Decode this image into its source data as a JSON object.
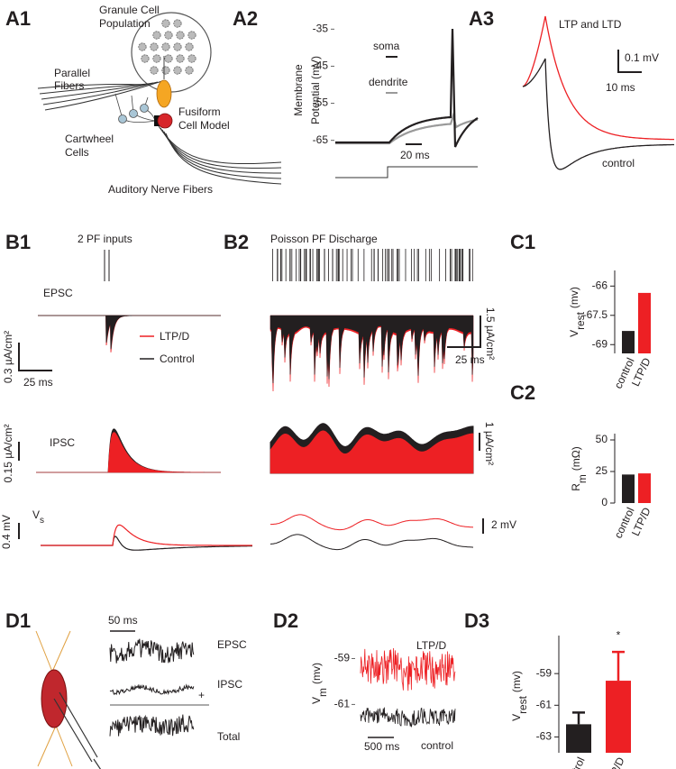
{
  "panel_labels": [
    "A1",
    "A2",
    "A3",
    "B1",
    "B2",
    "C1",
    "C2",
    "D1",
    "D2",
    "D3"
  ],
  "a1": {
    "granule": [
      "Granule Cell",
      "Population"
    ],
    "parallel": [
      "Parallel",
      "Fibers"
    ],
    "cartwheel": [
      "Cartwheel",
      "Cells"
    ],
    "fusiform": [
      "Fusiform",
      "Cell Model"
    ],
    "auditory": "Auditory Nerve Fibers"
  },
  "a2": {
    "ylabel": [
      "Membrane",
      "Potential  (mV)"
    ],
    "yticks": [
      -35,
      -45,
      -55,
      -65
    ],
    "ylim": [
      -68,
      -32
    ],
    "legend": [
      "soma",
      "dendrite"
    ],
    "scale": "20 ms"
  },
  "a3": {
    "title": "LTP and LTD",
    "scale_y": "0.1 mV",
    "scale_x": "10 ms",
    "trace": "control"
  },
  "b1": {
    "title": "2 PF inputs",
    "epsc": "EPSC",
    "ipsc": "IPSC",
    "vs": {
      "symbol": "V",
      "subscript": "s"
    },
    "legend": [
      "LTP/D",
      "Control"
    ],
    "scale_epsc": "0.3 µA/cm²",
    "scale_time": "25 ms",
    "scale_ipsc": "0.15 µA/cm²",
    "scale_vs": "0.4 mV"
  },
  "b2": {
    "title": "Poisson PF Discharge",
    "scale_epsc": "1.5 µA/cm²",
    "scale_time": "25 ms",
    "scale_ipsc": "1 µA/cm²",
    "scale_vs": "2 mV"
  },
  "d1": {
    "scale": "50 ms",
    "traces": [
      "EPSC",
      "IPSC",
      "Total"
    ],
    "operator": "+"
  },
  "d2": {
    "ylabel": {
      "symbol": "V",
      "subscript": "m",
      "unit": "(mv)"
    },
    "yticks": [
      -59,
      -61
    ],
    "ylim": [
      -63.3,
      -58
    ],
    "traces": [
      "LTP/D",
      "control"
    ],
    "scale": "500 ms"
  },
  "chart_data": [
    {
      "type": "bar",
      "ylabel": {
        "symbol": "V",
        "subscript": "rest",
        "unit": "(mv)"
      },
      "categories": [
        "control",
        "LTP/D"
      ],
      "values": [
        -68.3,
        -66.35
      ],
      "colors": [
        "#231f20",
        "#ed2024"
      ],
      "ylim": [
        -69.45,
        -65.2
      ],
      "yticks": [
        -66,
        -67.5,
        -69
      ]
    },
    {
      "type": "bar",
      "ylabel": {
        "symbol": "R",
        "subscript": "m",
        "unit": "(mΩ)"
      },
      "categories": [
        "control",
        "LTP/D"
      ],
      "values": [
        22.6,
        23.5
      ],
      "colors": [
        "#231f20",
        "#ed2024"
      ],
      "ylim": [
        0,
        55
      ],
      "yticks": [
        0,
        25,
        50
      ]
    },
    {
      "type": "bar",
      "ylabel": {
        "symbol": "V",
        "subscript": "rest",
        "unit": "(mv)"
      },
      "categories": [
        "control",
        "LTP/D"
      ],
      "values": [
        -62.2,
        -59.45
      ],
      "errors": [
        0.74,
        1.82
      ],
      "colors": [
        "#231f20",
        "#ed2024"
      ],
      "ylim": [
        -64,
        -56.6
      ],
      "yticks": [
        -59,
        -61,
        -63
      ],
      "annotation": "*"
    }
  ]
}
